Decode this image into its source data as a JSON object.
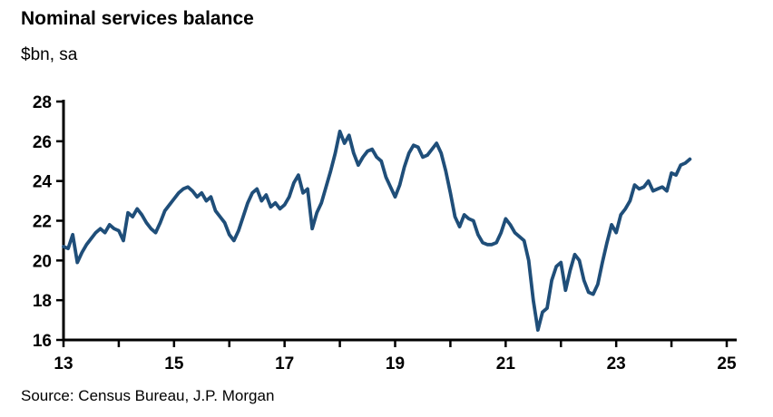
{
  "header": {
    "title": "Nominal services balance",
    "subtitle": "$bn, sa"
  },
  "footer": {
    "source": "Source: Census Bureau, J.P. Morgan"
  },
  "colors": {
    "line": "#1F4E79",
    "axis": "#000000",
    "text": "#000000",
    "background": "#FFFFFF"
  },
  "chart_data": {
    "type": "line",
    "title": "Nominal services balance",
    "ylabel": "$bn, sa",
    "xlabel": "",
    "grid": false,
    "legend": "none",
    "xlim": [
      13,
      25
    ],
    "ylim": [
      16,
      28
    ],
    "yticks": [
      {
        "value": 16,
        "label": "16"
      },
      {
        "value": 18,
        "label": "18"
      },
      {
        "value": 20,
        "label": "20"
      },
      {
        "value": 22,
        "label": "22"
      },
      {
        "value": 24,
        "label": "24"
      },
      {
        "value": 26,
        "label": "26"
      },
      {
        "value": 28,
        "label": "28"
      }
    ],
    "xticks": [
      {
        "value": 13,
        "label": "13"
      },
      {
        "value": 14,
        "label": ""
      },
      {
        "value": 15,
        "label": "15"
      },
      {
        "value": 16,
        "label": ""
      },
      {
        "value": 17,
        "label": "17"
      },
      {
        "value": 18,
        "label": ""
      },
      {
        "value": 19,
        "label": "19"
      },
      {
        "value": 20,
        "label": ""
      },
      {
        "value": 21,
        "label": "21"
      },
      {
        "value": 22,
        "label": ""
      },
      {
        "value": 23,
        "label": "23"
      },
      {
        "value": 24,
        "label": ""
      },
      {
        "value": 25,
        "label": "25"
      }
    ],
    "x_start_year": 2013,
    "frequency": "monthly",
    "series": [
      {
        "name": "Nominal services balance ($bn, sa)",
        "values": [
          20.7,
          20.6,
          21.3,
          19.9,
          20.4,
          20.8,
          21.1,
          21.4,
          21.6,
          21.4,
          21.8,
          21.6,
          21.5,
          21.0,
          22.4,
          22.2,
          22.6,
          22.3,
          21.9,
          21.6,
          21.4,
          21.9,
          22.5,
          22.8,
          23.1,
          23.4,
          23.6,
          23.7,
          23.5,
          23.2,
          23.4,
          23.0,
          23.2,
          22.5,
          22.2,
          21.9,
          21.3,
          21.0,
          21.5,
          22.2,
          22.9,
          23.4,
          23.6,
          23.0,
          23.3,
          22.7,
          22.9,
          22.6,
          22.8,
          23.2,
          23.9,
          24.3,
          23.4,
          23.6,
          21.6,
          22.4,
          22.9,
          23.7,
          24.5,
          25.4,
          26.5,
          25.9,
          26.3,
          25.4,
          24.8,
          25.2,
          25.5,
          25.6,
          25.2,
          25.0,
          24.2,
          23.7,
          23.2,
          23.8,
          24.7,
          25.4,
          25.8,
          25.7,
          25.2,
          25.3,
          25.6,
          25.9,
          25.4,
          24.5,
          23.4,
          22.2,
          21.7,
          22.3,
          22.1,
          22.0,
          21.3,
          20.9,
          20.8,
          20.8,
          20.9,
          21.4,
          22.1,
          21.8,
          21.4,
          21.2,
          21.0,
          20.0,
          18.0,
          16.5,
          17.4,
          17.6,
          19.0,
          19.7,
          19.9,
          18.5,
          19.5,
          20.3,
          20.0,
          19.0,
          18.4,
          18.3,
          18.8,
          19.9,
          20.9,
          21.8,
          21.4,
          22.3,
          22.6,
          23.0,
          23.8,
          23.6,
          23.7,
          24.0,
          23.5,
          23.6,
          23.7,
          23.5,
          24.4,
          24.3,
          24.8,
          24.9,
          25.1
        ]
      }
    ]
  }
}
